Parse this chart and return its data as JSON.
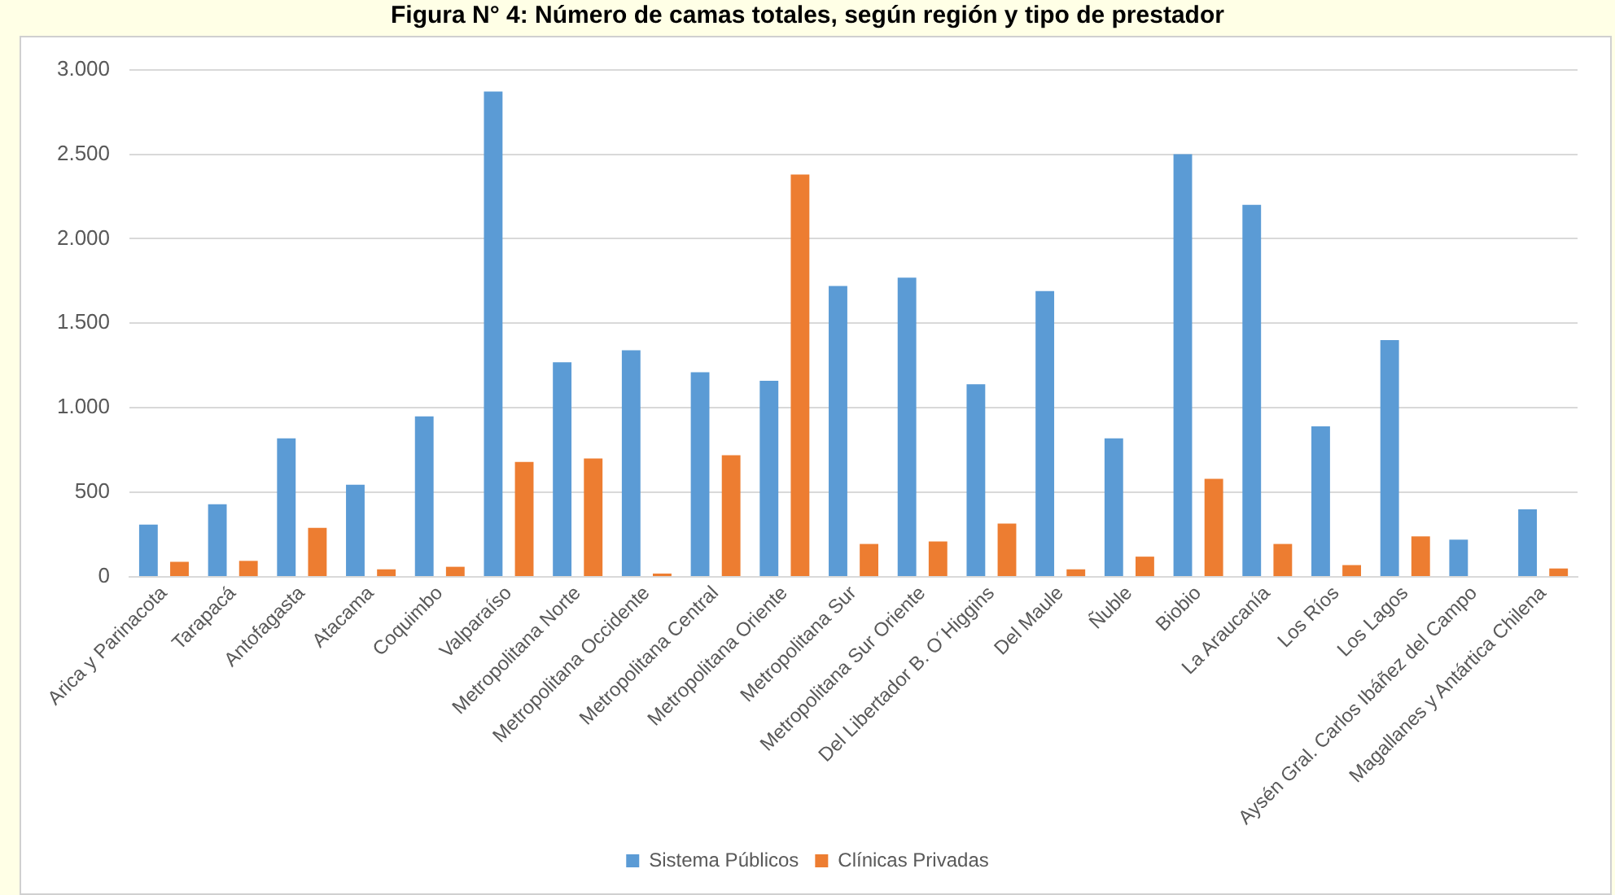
{
  "chart_data": {
    "type": "bar",
    "title": "Figura N° 4: Número de camas totales, según región y tipo de prestador",
    "categories": [
      "Arica y Parinacota",
      "Tarapacá",
      "Antofagasta",
      "Atacama",
      "Coquimbo",
      "Valparaíso",
      "Metropolitana Norte",
      "Metropolitana Occidente",
      "Metropolitana Central",
      "Metropolitana Oriente",
      "Metropolitana Sur",
      "Metropolitana Sur Oriente",
      "Del Libertador B. O´Higgins",
      "Del Maule",
      "Ñuble",
      "Biobio",
      "La Araucanía",
      "Los Ríos",
      "Los Lagos",
      "Aysén Gral. Carlos Ibáñez del Campo",
      "Magallanes y Antártica Chilena"
    ],
    "series": [
      {
        "name": "Sistema Públicos",
        "color": "#5b9bd5",
        "values": [
          310,
          430,
          820,
          545,
          950,
          2870,
          1270,
          1340,
          1210,
          1160,
          1720,
          1770,
          1140,
          1690,
          820,
          2500,
          2200,
          890,
          1400,
          220,
          400
        ]
      },
      {
        "name": "Clínicas Privadas",
        "color": "#ed7d31",
        "values": [
          90,
          95,
          290,
          45,
          60,
          680,
          700,
          20,
          720,
          2380,
          195,
          210,
          315,
          45,
          120,
          580,
          195,
          70,
          240,
          0,
          50
        ]
      }
    ],
    "ylim": [
      0,
      3000
    ],
    "yticks": [
      {
        "value": 0,
        "label": "0"
      },
      {
        "value": 500,
        "label": "500"
      },
      {
        "value": 1000,
        "label": "1.000"
      },
      {
        "value": 1500,
        "label": "1.500"
      },
      {
        "value": 2000,
        "label": "2.000"
      },
      {
        "value": 2500,
        "label": "2.500"
      },
      {
        "value": 3000,
        "label": "3.000"
      }
    ],
    "grid": "y",
    "legend": "bottom"
  }
}
